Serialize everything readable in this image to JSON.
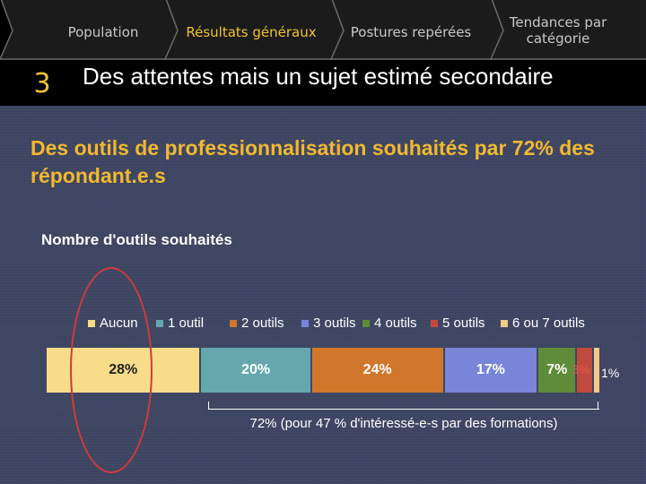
{
  "nav": {
    "steps": [
      {
        "label": "Population",
        "state": "done"
      },
      {
        "label": "Résultats généraux",
        "state": "active"
      },
      {
        "label": "Postures repérées",
        "state": "todo"
      },
      {
        "label": "Tendances par catégorie",
        "state": "todo"
      }
    ]
  },
  "section": {
    "number": "3",
    "title": "Des attentes mais un sujet estimé secondaire"
  },
  "headline": "Des outils de professionnalisation souhaités par 72% des répondant.e.s",
  "chart_data": {
    "type": "bar",
    "title": "Nombre d'outils souhaités",
    "stacked": true,
    "categories": [
      "Aucun",
      "1 outil",
      "2 outils",
      "3 outils",
      "4 outils",
      "5 outils",
      "6 ou 7 outils"
    ],
    "values": [
      28,
      20,
      24,
      17,
      7,
      3,
      1
    ],
    "value_labels": [
      "28%",
      "20%",
      "24%",
      "17%",
      "7%",
      "3%",
      "1%"
    ],
    "colors": [
      "#f9dc8a",
      "#65a7ac",
      "#d0772c",
      "#7985d8",
      "#5e8c38",
      "#c24a3c",
      "#f3c889"
    ],
    "legend": "top",
    "annotation": "72% (pour 47 % d'intéressé-e-s par des formations)"
  }
}
